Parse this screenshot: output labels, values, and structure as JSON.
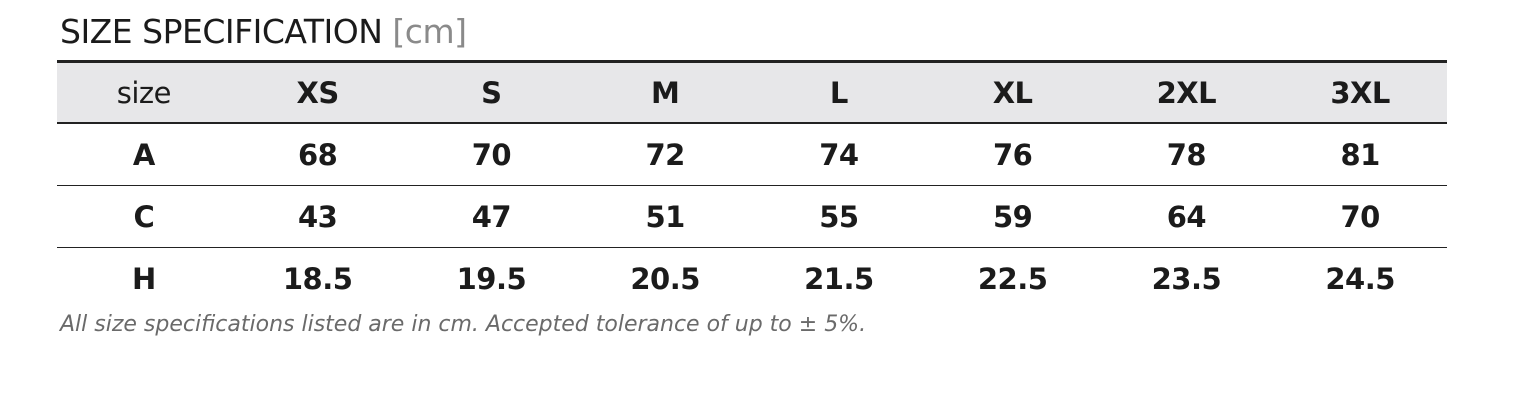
{
  "header": {
    "title": "SIZE SPECIFICATION",
    "unit": "[cm]"
  },
  "table": {
    "columns": [
      "size",
      "XS",
      "S",
      "M",
      "L",
      "XL",
      "2XL",
      "3XL"
    ],
    "rows": [
      [
        "A",
        68,
        70,
        72,
        74,
        76,
        78,
        81
      ],
      [
        "C",
        43,
        47,
        51,
        55,
        59,
        64,
        70
      ],
      [
        "H",
        18.5,
        19.5,
        20.5,
        21.5,
        22.5,
        23.5,
        24.5
      ]
    ]
  },
  "footnote": "All size specifications listed are in cm. Accepted tolerance of up to ± 5%."
}
